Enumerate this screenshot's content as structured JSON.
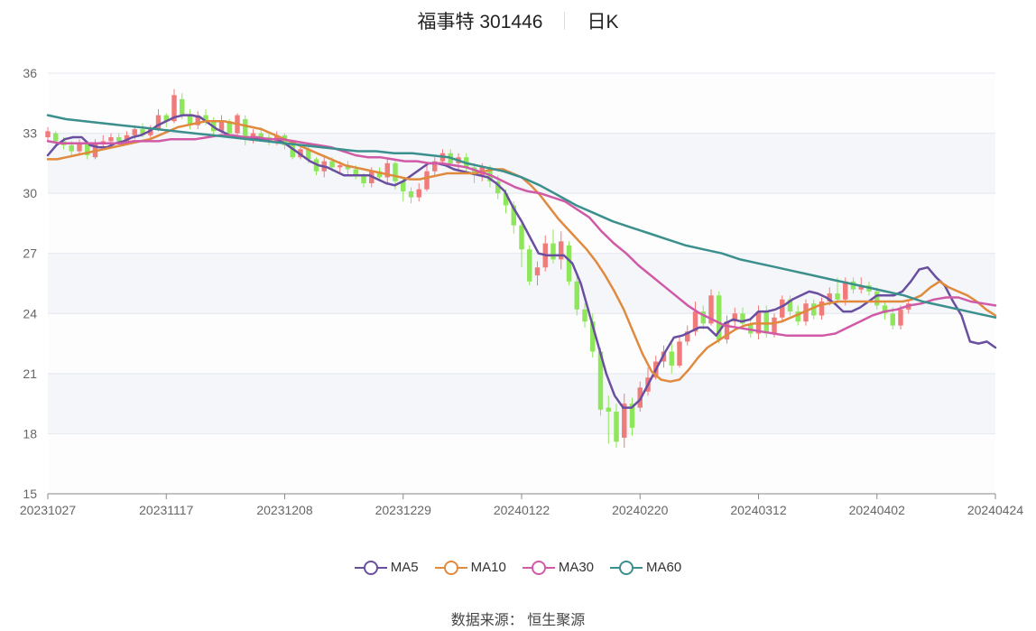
{
  "title": {
    "name": "福事特 301446",
    "period": "日K"
  },
  "source_label": "数据来源：",
  "source_value": "恒生聚源",
  "chart_data": {
    "type": "candlestick",
    "x_ticks": [
      "20231027",
      "20231117",
      "20231208",
      "20231229",
      "20240122",
      "20240220",
      "20240312",
      "20240402",
      "20240424"
    ],
    "x_tick_index": [
      0,
      15,
      30,
      45,
      60,
      75,
      90,
      105,
      120
    ],
    "ylim": [
      15,
      36
    ],
    "y_ticks": [
      15,
      18,
      21,
      24,
      27,
      30,
      33,
      36
    ],
    "up_color": "#f07b7b",
    "down_color": "#8ee65a",
    "series": [
      {
        "name": "MA5",
        "color": "#6a4fa0",
        "values": [
          31.9,
          32.4,
          32.7,
          32.8,
          32.8,
          32.4,
          32.3,
          32.3,
          32.5,
          32.6,
          32.8,
          32.9,
          33.1,
          33.4,
          33.6,
          33.8,
          33.9,
          33.9,
          33.8,
          33.5,
          33.2,
          33.0,
          32.8,
          32.8,
          32.7,
          32.7,
          32.7,
          32.7,
          32.5,
          32.2,
          31.9,
          31.6,
          31.4,
          31.3,
          31.1,
          30.9,
          30.9,
          30.9,
          30.9,
          30.7,
          30.5,
          30.4,
          30.6,
          30.9,
          31.2,
          31.5,
          31.5,
          31.4,
          31.2,
          31.1,
          31.0,
          30.9,
          30.8,
          30.5,
          30.1,
          29.3,
          28.6,
          27.8,
          27.0,
          26.9,
          26.9,
          26.9,
          26.5,
          25.5,
          24.0,
          22.5,
          21.0,
          19.9,
          19.3,
          19.3,
          19.7,
          20.5,
          21.3,
          22.1,
          22.8,
          22.9,
          23.1,
          23.3,
          23.3,
          22.9,
          23.5,
          23.7,
          23.6,
          23.7,
          24.1,
          24.1,
          24.2,
          24.4,
          24.7,
          24.9,
          25.1,
          25.0,
          24.8,
          24.5,
          24.1,
          24.1,
          24.3,
          24.6,
          24.9,
          24.9,
          24.9,
          25.1,
          25.6,
          26.2,
          26.3,
          25.8,
          25.4,
          24.6,
          23.9,
          22.6,
          22.5,
          22.6,
          22.3
        ]
      },
      {
        "name": "MA10",
        "color": "#e08a3e",
        "values": [
          31.7,
          31.7,
          31.8,
          31.9,
          32.0,
          32.1,
          32.2,
          32.3,
          32.4,
          32.5,
          32.6,
          32.7,
          32.9,
          33.1,
          33.3,
          33.4,
          33.5,
          33.6,
          33.6,
          33.6,
          33.5,
          33.4,
          33.3,
          33.2,
          33.0,
          32.8,
          32.6,
          32.4,
          32.2,
          32.0,
          31.8,
          31.6,
          31.4,
          31.3,
          31.2,
          31.1,
          31.0,
          30.9,
          30.8,
          30.7,
          30.7,
          30.8,
          30.9,
          31.0,
          31.0,
          31.0,
          31.0,
          31.1,
          31.2,
          31.2,
          31.0,
          30.8,
          30.4,
          29.9,
          29.3,
          28.7,
          28.2,
          27.7,
          27.2,
          26.6,
          25.9,
          25.1,
          24.2,
          23.1,
          22.0,
          21.1,
          20.7,
          20.6,
          20.7,
          21.2,
          21.8,
          22.3,
          22.6,
          22.9,
          23.2,
          23.4,
          23.5,
          23.5,
          23.5,
          23.6,
          23.8,
          24.0,
          24.2,
          24.4,
          24.5,
          24.6,
          24.6,
          24.6,
          24.6,
          24.6,
          24.6,
          24.6,
          24.6,
          24.7,
          24.9,
          25.3,
          25.6,
          25.3,
          25.1,
          24.9,
          24.6,
          24.2,
          23.9
        ]
      },
      {
        "name": "MA30",
        "color": "#d05aa6",
        "values": [
          32.6,
          32.5,
          32.5,
          32.5,
          32.5,
          32.5,
          32.5,
          32.6,
          32.6,
          32.6,
          32.7,
          32.7,
          32.7,
          32.8,
          32.9,
          32.9,
          32.8,
          32.8,
          32.7,
          32.7,
          32.6,
          32.5,
          32.4,
          32.3,
          32.1,
          31.9,
          31.8,
          31.8,
          31.7,
          31.6,
          31.6,
          31.5,
          31.5,
          31.4,
          31.3,
          31.1,
          30.9,
          30.6,
          30.3,
          30.1,
          30.0,
          29.8,
          29.6,
          29.2,
          28.8,
          28.1,
          27.5,
          27.0,
          26.4,
          25.9,
          25.4,
          24.9,
          24.4,
          24.0,
          23.7,
          23.4,
          23.3,
          23.2,
          23.1,
          23.0,
          22.9,
          22.9,
          22.9,
          22.9,
          23.0,
          23.3,
          23.6,
          23.9,
          24.1,
          24.2,
          24.4,
          24.5,
          24.7,
          24.8,
          24.8,
          24.6,
          24.5,
          24.4
        ]
      },
      {
        "name": "MA60",
        "color": "#3b8f8d",
        "values": [
          33.9,
          33.7,
          33.6,
          33.5,
          33.4,
          33.3,
          33.2,
          33.1,
          33.0,
          32.9,
          32.8,
          32.7,
          32.6,
          32.5,
          32.4,
          32.3,
          32.2,
          32.1,
          32.1,
          32.0,
          32.0,
          31.9,
          31.8,
          31.5,
          31.3,
          31.1,
          30.8,
          30.4,
          29.9,
          29.4,
          29.0,
          28.6,
          28.3,
          28.0,
          27.7,
          27.4,
          27.2,
          27.0,
          26.7,
          26.5,
          26.3,
          26.1,
          25.9,
          25.7,
          25.5,
          25.3,
          25.1,
          24.9,
          24.6,
          24.4,
          24.2,
          24.0,
          23.8
        ]
      }
    ],
    "series_start": [
      0,
      0,
      0,
      0
    ],
    "series_end": [
      120,
      120,
      120,
      120
    ],
    "candles": [
      [
        32.8,
        33.1,
        33.3,
        32.6
      ],
      [
        33.0,
        32.6,
        33.1,
        32.4
      ],
      [
        32.6,
        32.4,
        32.8,
        32.2
      ],
      [
        32.4,
        32.1,
        32.6,
        31.9
      ],
      [
        32.1,
        32.5,
        32.7,
        31.9
      ],
      [
        32.5,
        31.9,
        32.6,
        31.7
      ],
      [
        31.8,
        32.5,
        32.7,
        31.7
      ],
      [
        32.5,
        32.6,
        32.9,
        32.3
      ],
      [
        32.6,
        32.8,
        33.0,
        32.5
      ],
      [
        32.8,
        32.6,
        33.0,
        32.4
      ],
      [
        32.6,
        32.9,
        33.1,
        32.5
      ],
      [
        32.9,
        33.2,
        33.4,
        32.7
      ],
      [
        33.2,
        32.9,
        33.5,
        32.8
      ],
      [
        32.9,
        33.2,
        33.4,
        32.7
      ],
      [
        33.2,
        33.9,
        34.2,
        33.1
      ],
      [
        33.9,
        33.6,
        34.0,
        33.3
      ],
      [
        33.6,
        34.9,
        35.2,
        33.5
      ],
      [
        34.7,
        33.9,
        35.0,
        33.7
      ],
      [
        33.9,
        33.4,
        34.2,
        33.2
      ],
      [
        33.4,
        33.9,
        34.1,
        33.2
      ],
      [
        33.9,
        33.6,
        34.2,
        33.4
      ],
      [
        33.6,
        33.1,
        33.8,
        32.9
      ],
      [
        33.1,
        33.6,
        33.9,
        33.0
      ],
      [
        33.6,
        33.0,
        33.7,
        32.8
      ],
      [
        33.0,
        33.9,
        34.0,
        32.9
      ],
      [
        33.7,
        32.7,
        33.9,
        32.4
      ],
      [
        32.7,
        33.0,
        33.2,
        32.5
      ],
      [
        33.0,
        32.8,
        33.3,
        32.6
      ],
      [
        32.8,
        32.6,
        33.0,
        32.4
      ],
      [
        32.6,
        32.9,
        33.1,
        32.4
      ],
      [
        32.9,
        32.4,
        33.0,
        32.2
      ],
      [
        32.4,
        31.8,
        32.6,
        31.7
      ],
      [
        31.8,
        32.2,
        32.4,
        31.7
      ],
      [
        32.2,
        31.7,
        32.3,
        31.5
      ],
      [
        31.7,
        31.1,
        31.8,
        30.9
      ],
      [
        31.1,
        31.6,
        31.8,
        30.8
      ],
      [
        31.6,
        31.3,
        31.8,
        31.1
      ],
      [
        31.3,
        31.4,
        31.6,
        31.0
      ],
      [
        31.4,
        31.2,
        31.6,
        30.9
      ],
      [
        31.2,
        30.9,
        31.4,
        30.7
      ],
      [
        30.9,
        30.5,
        31.0,
        30.3
      ],
      [
        30.5,
        31.1,
        31.3,
        30.3
      ],
      [
        31.1,
        30.8,
        31.3,
        30.6
      ],
      [
        30.8,
        31.5,
        31.7,
        30.5
      ],
      [
        31.5,
        30.6,
        31.6,
        30.2
      ],
      [
        30.6,
        30.1,
        30.8,
        29.6
      ],
      [
        30.1,
        29.8,
        30.3,
        29.5
      ],
      [
        29.8,
        30.2,
        30.5,
        29.6
      ],
      [
        30.2,
        31.1,
        31.4,
        30.1
      ],
      [
        31.1,
        31.6,
        31.8,
        30.9
      ],
      [
        31.6,
        32.0,
        32.2,
        31.4
      ],
      [
        32.0,
        31.5,
        32.2,
        31.3
      ],
      [
        31.5,
        31.8,
        32.0,
        31.2
      ],
      [
        31.8,
        31.3,
        32.0,
        31.0
      ],
      [
        31.3,
        30.9,
        31.5,
        30.5
      ],
      [
        30.9,
        31.3,
        31.5,
        30.6
      ],
      [
        31.3,
        30.6,
        31.4,
        30.3
      ],
      [
        30.6,
        30.0,
        30.9,
        29.7
      ],
      [
        30.0,
        29.4,
        30.2,
        29.0
      ],
      [
        29.4,
        28.4,
        29.6,
        28.0
      ],
      [
        28.4,
        27.2,
        28.6,
        26.3
      ],
      [
        27.2,
        25.6,
        27.4,
        25.4
      ],
      [
        25.9,
        26.3,
        26.6,
        25.4
      ],
      [
        26.3,
        27.5,
        27.9,
        26.1
      ],
      [
        27.5,
        26.7,
        28.2,
        26.5
      ],
      [
        26.7,
        27.6,
        28.1,
        26.2
      ],
      [
        27.4,
        25.6,
        27.6,
        25.4
      ],
      [
        25.6,
        24.2,
        25.9,
        23.9
      ],
      [
        24.2,
        23.6,
        24.5,
        23.3
      ],
      [
        23.6,
        22.1,
        24.0,
        21.8
      ],
      [
        22.1,
        19.2,
        22.3,
        18.9
      ],
      [
        19.3,
        19.1,
        19.9,
        17.5
      ],
      [
        19.1,
        17.6,
        19.5,
        17.3
      ],
      [
        17.8,
        19.5,
        20.0,
        17.3
      ],
      [
        19.5,
        18.3,
        19.8,
        17.9
      ],
      [
        19.3,
        20.3,
        20.6,
        19.1
      ],
      [
        20.1,
        20.8,
        21.3,
        19.9
      ],
      [
        20.8,
        21.6,
        21.9,
        20.7
      ],
      [
        21.6,
        22.1,
        22.4,
        21.3
      ],
      [
        22.1,
        21.4,
        22.6,
        21.0
      ],
      [
        21.4,
        22.6,
        22.9,
        21.3
      ],
      [
        22.6,
        23.1,
        23.4,
        22.4
      ],
      [
        23.1,
        24.1,
        24.6,
        22.9
      ],
      [
        24.1,
        23.5,
        24.4,
        23.2
      ],
      [
        23.5,
        24.9,
        25.2,
        23.4
      ],
      [
        24.9,
        22.7,
        25.1,
        22.5
      ],
      [
        22.7,
        23.6,
        23.9,
        22.5
      ],
      [
        23.6,
        24.0,
        24.3,
        23.3
      ],
      [
        24.0,
        23.5,
        24.3,
        23.3
      ],
      [
        23.5,
        23.0,
        23.8,
        22.8
      ],
      [
        23.0,
        24.1,
        24.4,
        22.7
      ],
      [
        24.1,
        23.0,
        24.4,
        22.8
      ],
      [
        23.0,
        23.8,
        24.0,
        22.8
      ],
      [
        23.8,
        24.7,
        24.9,
        23.6
      ],
      [
        24.7,
        24.1,
        24.9,
        23.9
      ],
      [
        24.1,
        23.6,
        24.4,
        23.4
      ],
      [
        23.6,
        24.5,
        24.7,
        23.4
      ],
      [
        24.5,
        23.9,
        24.7,
        23.7
      ],
      [
        23.9,
        24.6,
        24.8,
        23.7
      ],
      [
        24.6,
        25.0,
        25.3,
        24.4
      ],
      [
        25.0,
        24.7,
        25.8,
        24.5
      ],
      [
        24.7,
        25.6,
        25.8,
        24.4
      ],
      [
        25.6,
        25.2,
        25.8,
        25.0
      ],
      [
        25.2,
        25.4,
        25.8,
        25.0
      ],
      [
        25.4,
        25.1,
        25.6,
        24.9
      ],
      [
        25.1,
        24.4,
        25.3,
        24.2
      ],
      [
        24.4,
        24.0,
        24.6,
        23.7
      ],
      [
        24.0,
        23.4,
        24.3,
        23.2
      ],
      [
        23.4,
        24.2,
        24.4,
        23.2
      ],
      [
        24.2,
        24.5,
        24.7,
        24.0
      ]
    ]
  }
}
